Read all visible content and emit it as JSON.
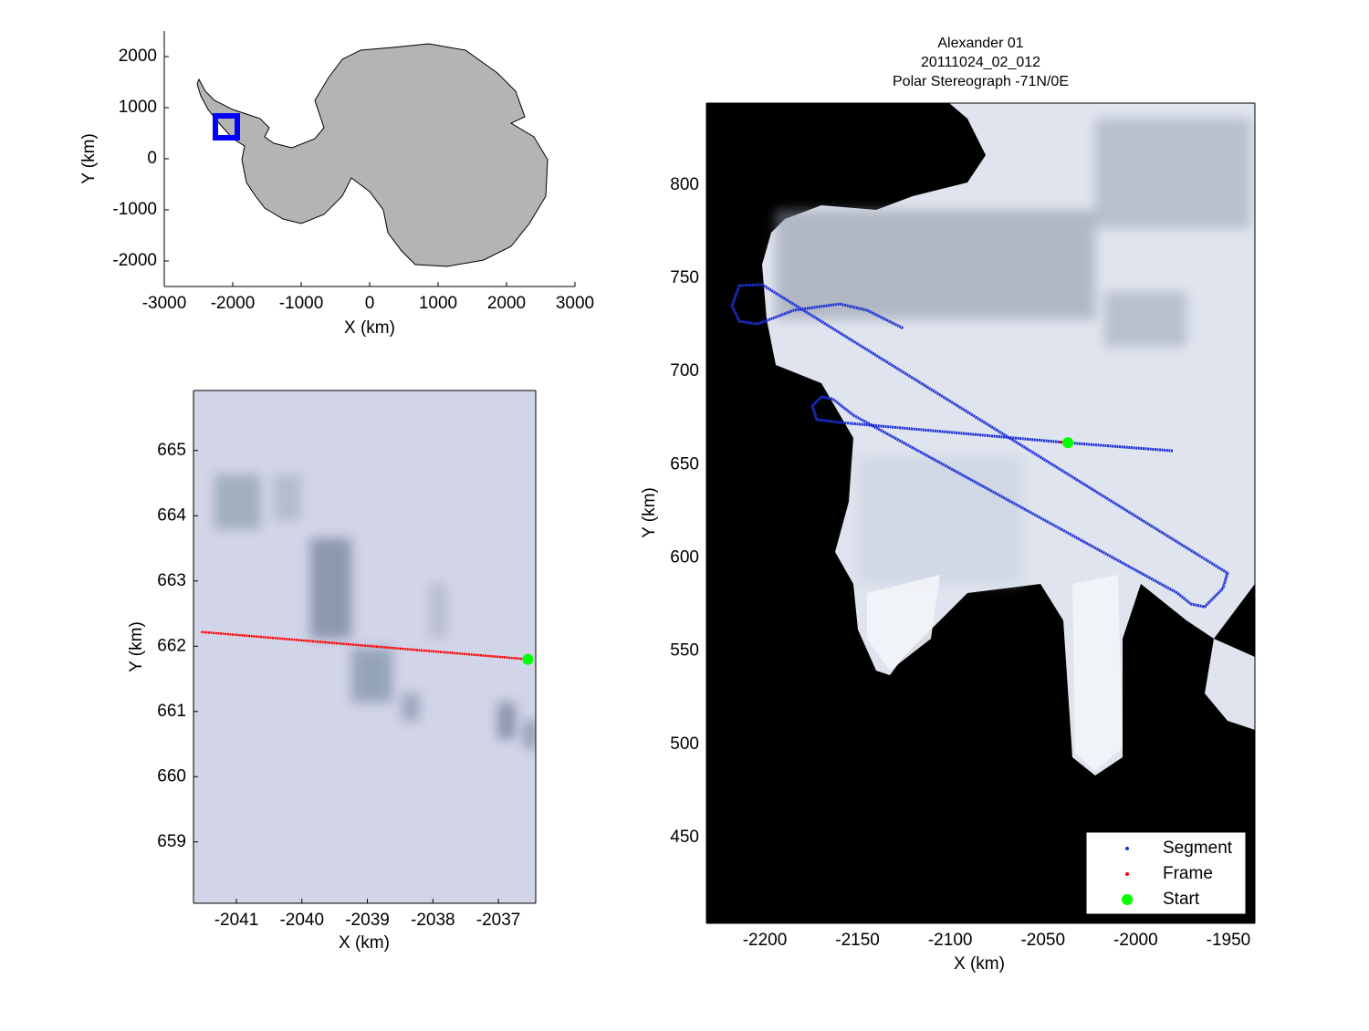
{
  "chart_data": [
    {
      "type": "map",
      "xlabel": "X (km)",
      "ylabel": "Y (km)",
      "xlim": [
        -3000,
        3000
      ],
      "ylim": [
        -2500,
        2500
      ],
      "xticks": [
        -3000,
        -2000,
        -1000,
        0,
        1000,
        2000,
        3000
      ],
      "yticks": [
        -2000,
        -1000,
        0,
        1000,
        2000
      ],
      "box": {
        "x": [
          -2253,
          -1933
        ],
        "y": [
          411,
          839
        ],
        "color": "#0000ff"
      }
    },
    {
      "type": "map",
      "xlabel": "X (km)",
      "ylabel": "Y (km)",
      "xlim": [
        -2041.655,
        -2036.43
      ],
      "ylim": [
        658.06,
        665.92
      ],
      "xticks": [
        -2041,
        -2040,
        -2039,
        -2038,
        -2037
      ],
      "yticks": [
        659,
        660,
        661,
        662,
        663,
        664,
        665
      ],
      "series": [
        {
          "color": "#ff0000",
          "x": [
            -2041.54,
            -2036.55
          ],
          "y": [
            662.22,
            661.8
          ]
        },
        {
          "color": "#00ff00",
          "marker": "o",
          "x": [
            -2036.55
          ],
          "y": [
            661.8
          ]
        }
      ]
    },
    {
      "type": "map",
      "title": [
        "Alexander 01",
        "20111024_02_012",
        "Polar Stereograph -71N/0E"
      ],
      "xlabel": "X (km)",
      "ylabel": "Y (km)",
      "xlim": [
        -2231.5,
        -1935.7
      ],
      "ylim": [
        404,
        844
      ],
      "xticks": [
        -2200,
        -2150,
        -2100,
        -2050,
        -2000,
        -1950
      ],
      "yticks": [
        450,
        500,
        550,
        600,
        650,
        700,
        750,
        800
      ],
      "legend": "lower right",
      "series": [
        {
          "name": "Segment",
          "color": "#1c2fd6",
          "x": [
            -1980.0,
            -2036.5,
            -2159.6,
            -2172.0,
            -2174.4,
            -2169.5,
            -2163.6,
            -2152.3,
            -1977.6,
            -1970.2,
            -1962.8,
            -1953.0,
            -1950.5,
            -2201.5,
            -2213.8,
            -2217.7,
            -2213.8,
            -2203.9,
            -2184.3,
            -2159.6,
            -2144.9,
            -2125.2
          ],
          "y": [
            657.5,
            661.8,
            672.7,
            674.2,
            681.5,
            686.4,
            685.4,
            676.6,
            581.2,
            575.3,
            573.8,
            583.6,
            591.9,
            746.6,
            746.1,
            735.3,
            727.0,
            725.5,
            732.9,
            736.3,
            732.9,
            723.1
          ]
        },
        {
          "name": "Frame",
          "color": "#ff0000",
          "x": [
            -2041.54,
            -2036.55
          ],
          "y": [
            662.22,
            661.8
          ]
        },
        {
          "name": "Start",
          "color": "#00ff00",
          "marker": "o",
          "x": [
            -2036.55
          ],
          "y": [
            661.8
          ]
        }
      ]
    }
  ]
}
